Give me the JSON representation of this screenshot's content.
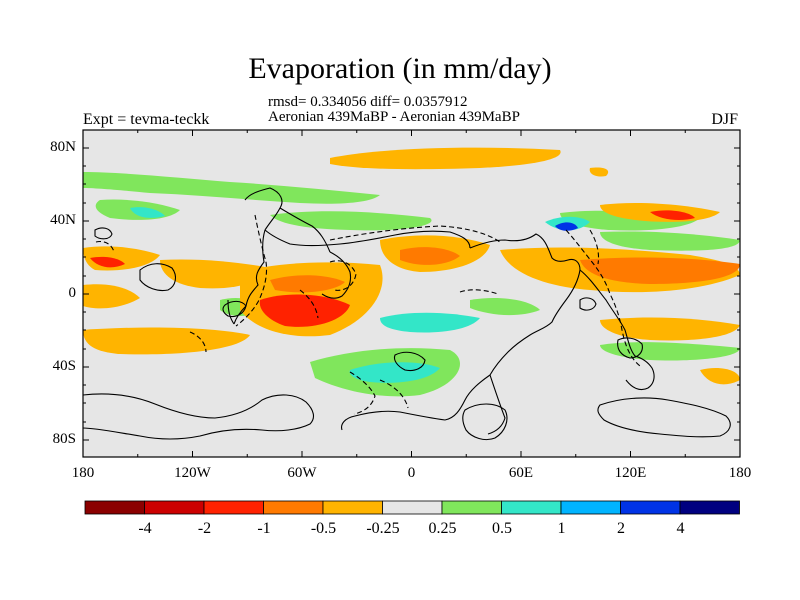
{
  "title": "Evaporation (in mm/day)",
  "stats": {
    "rmsd_line": "rmsd= 0.334056 diff= 0.0357912",
    "comparison": "Aeronian 439MaBP - Aeronian 439MaBP"
  },
  "expt": "Expt = tevma-teckk",
  "season": "DJF",
  "y_axis": {
    "labels": [
      "80N",
      "40N",
      "0",
      "40S",
      "80S"
    ]
  },
  "x_axis": {
    "labels": [
      "180",
      "120W",
      "60W",
      "0",
      "60E",
      "120E",
      "180"
    ]
  },
  "colorbar": {
    "labels": [
      "-4",
      "-2",
      "-1",
      "-0.5",
      "-0.25",
      "0.25",
      "0.5",
      "1",
      "2",
      "4"
    ],
    "colors": [
      "#8b0000",
      "#cc0000",
      "#ff2200",
      "#ff7a00",
      "#ffb400",
      "#e6e6e6",
      "#80e65c",
      "#33e6c8",
      "#00b4ff",
      "#0033e6",
      "#000080"
    ]
  }
}
